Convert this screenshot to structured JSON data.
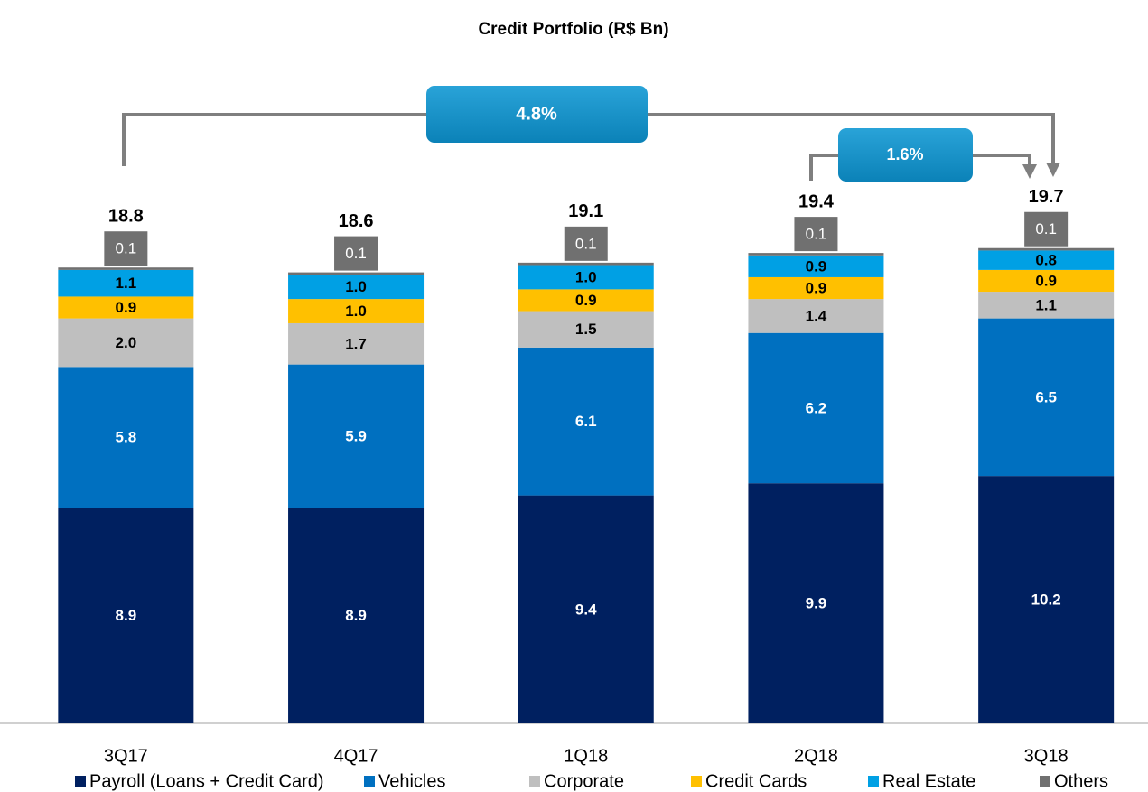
{
  "chart_data": {
    "type": "stacked_bar",
    "title": "Credit Portfolio (R$ Bn)",
    "categories": [
      "3Q17",
      "4Q17",
      "1Q18",
      "2Q18",
      "3Q18"
    ],
    "series": [
      {
        "name": "Payroll (Loans + Credit Card)",
        "color": "#002060",
        "values": [
          8.9,
          8.9,
          9.4,
          9.9,
          10.2
        ],
        "value_labels": [
          "8.9",
          "8.9",
          "9.4",
          "9.9",
          "10.2"
        ]
      },
      {
        "name": "Vehicles",
        "color": "#0070c0",
        "values": [
          5.8,
          5.9,
          6.1,
          6.2,
          6.5
        ],
        "value_labels": [
          "5.8",
          "5.9",
          "6.1",
          "6.2",
          "6.5"
        ]
      },
      {
        "name": "Corporate",
        "color": "#bfbfbf",
        "values": [
          2.0,
          1.7,
          1.5,
          1.4,
          1.1
        ],
        "value_labels": [
          "2.0",
          "1.7",
          "1.5",
          "1.4",
          "1.1"
        ]
      },
      {
        "name": "Credit Cards",
        "color": "#ffc000",
        "values": [
          0.9,
          1.0,
          0.9,
          0.9,
          0.9
        ],
        "value_labels": [
          "0.9",
          "1.0",
          "0.9",
          "0.9",
          "0.9"
        ]
      },
      {
        "name": "Real Estate",
        "color": "#00a0e4",
        "values": [
          1.1,
          1.0,
          1.0,
          0.9,
          0.8
        ],
        "value_labels": [
          "1.1",
          "1.0",
          "1.0",
          "0.9",
          "0.8"
        ]
      },
      {
        "name": "Others",
        "color": "#707070",
        "values": [
          0.1,
          0.1,
          0.1,
          0.1,
          0.1
        ]
      }
    ],
    "totals": [
      18.8,
      18.6,
      19.1,
      19.4,
      19.7
    ],
    "annotations": [
      {
        "text": "4.8%"
      },
      {
        "text": "1.6%"
      }
    ],
    "ylim": [
      0,
      20
    ]
  }
}
